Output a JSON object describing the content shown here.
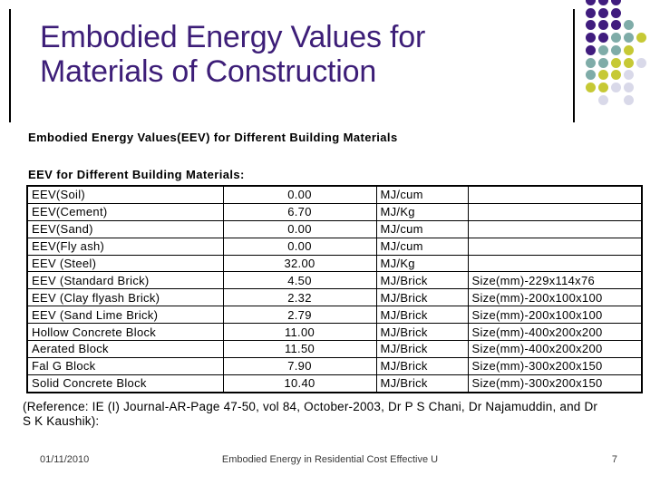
{
  "slide": {
    "title": {
      "line1": "Embodied Energy Values for",
      "line2": "Materials of Construction"
    },
    "subtitle": "Embodied Energy Values(EEV) for Different Building Materials",
    "table_heading": "EEV for Different Building Materials:",
    "reference": {
      "line1": "(Reference:  IE (I) Journal-AR-Page 47-50, vol 84, October-2003, Dr P S Chani, Dr Najamuddin, and Dr",
      "line2": "S K Kaushik):"
    },
    "footer": {
      "date": "01/11/2010",
      "doc_title": "Embodied Energy in Residential Cost Effective U",
      "page_number": "7"
    }
  },
  "table": {
    "rows": [
      {
        "material": "EEV(Soil)",
        "value": "0.00",
        "unit": "MJ/cum",
        "size": ""
      },
      {
        "material": "EEV(Cement)",
        "value": "6.70",
        "unit": "MJ/Kg",
        "size": ""
      },
      {
        "material": "EEV(Sand)",
        "value": "0.00",
        "unit": "MJ/cum",
        "size": ""
      },
      {
        "material": "EEV(Fly ash)",
        "value": "0.00",
        "unit": "MJ/cum",
        "size": ""
      },
      {
        "material": "EEV (Steel)",
        "value": "32.00",
        "unit": "MJ/Kg",
        "size": ""
      },
      {
        "material": "EEV (Standard Brick)",
        "value": "4.50",
        "unit": "MJ/Brick",
        "size": "Size(mm)-229x114x76"
      },
      {
        "material": "EEV (Clay flyash Brick)",
        "value": "2.32",
        "unit": "MJ/Brick",
        "size": "Size(mm)-200x100x100"
      },
      {
        "material": "EEV (Sand Lime Brick)",
        "value": "2.79",
        "unit": "MJ/Brick",
        "size": "Size(mm)-200x100x100"
      },
      {
        "material": "Hollow Concrete Block",
        "value": "11.00",
        "unit": "MJ/Brick",
        "size": "Size(mm)-400x200x200"
      },
      {
        "material": "Aerated Block",
        "value": "11.50",
        "unit": "MJ/Brick",
        "size": "Size(mm)-400x200x200"
      },
      {
        "material": "Fal G Block",
        "value": "7.90",
        "unit": "MJ/Brick",
        "size": "Size(mm)-300x200x150"
      },
      {
        "material": "Solid Concrete Block",
        "value": "10.40",
        "unit": "MJ/Brick",
        "size": "Size(mm)-300x200x150"
      }
    ]
  },
  "decoration": {
    "colors": {
      "title": "#3D1E78",
      "dot_purple": "#401C7E",
      "dot_teal": "#7FACA8",
      "dot_yellow": "#C6C935",
      "dot_lavender": "#D9D9E9"
    },
    "dot_pattern": [
      "PPP--",
      "PPP--",
      "PPPT-",
      "PPTTY",
      "PTTY-",
      "TTYYL",
      "TYYL-",
      "YYLL-",
      "-L-L-"
    ]
  }
}
